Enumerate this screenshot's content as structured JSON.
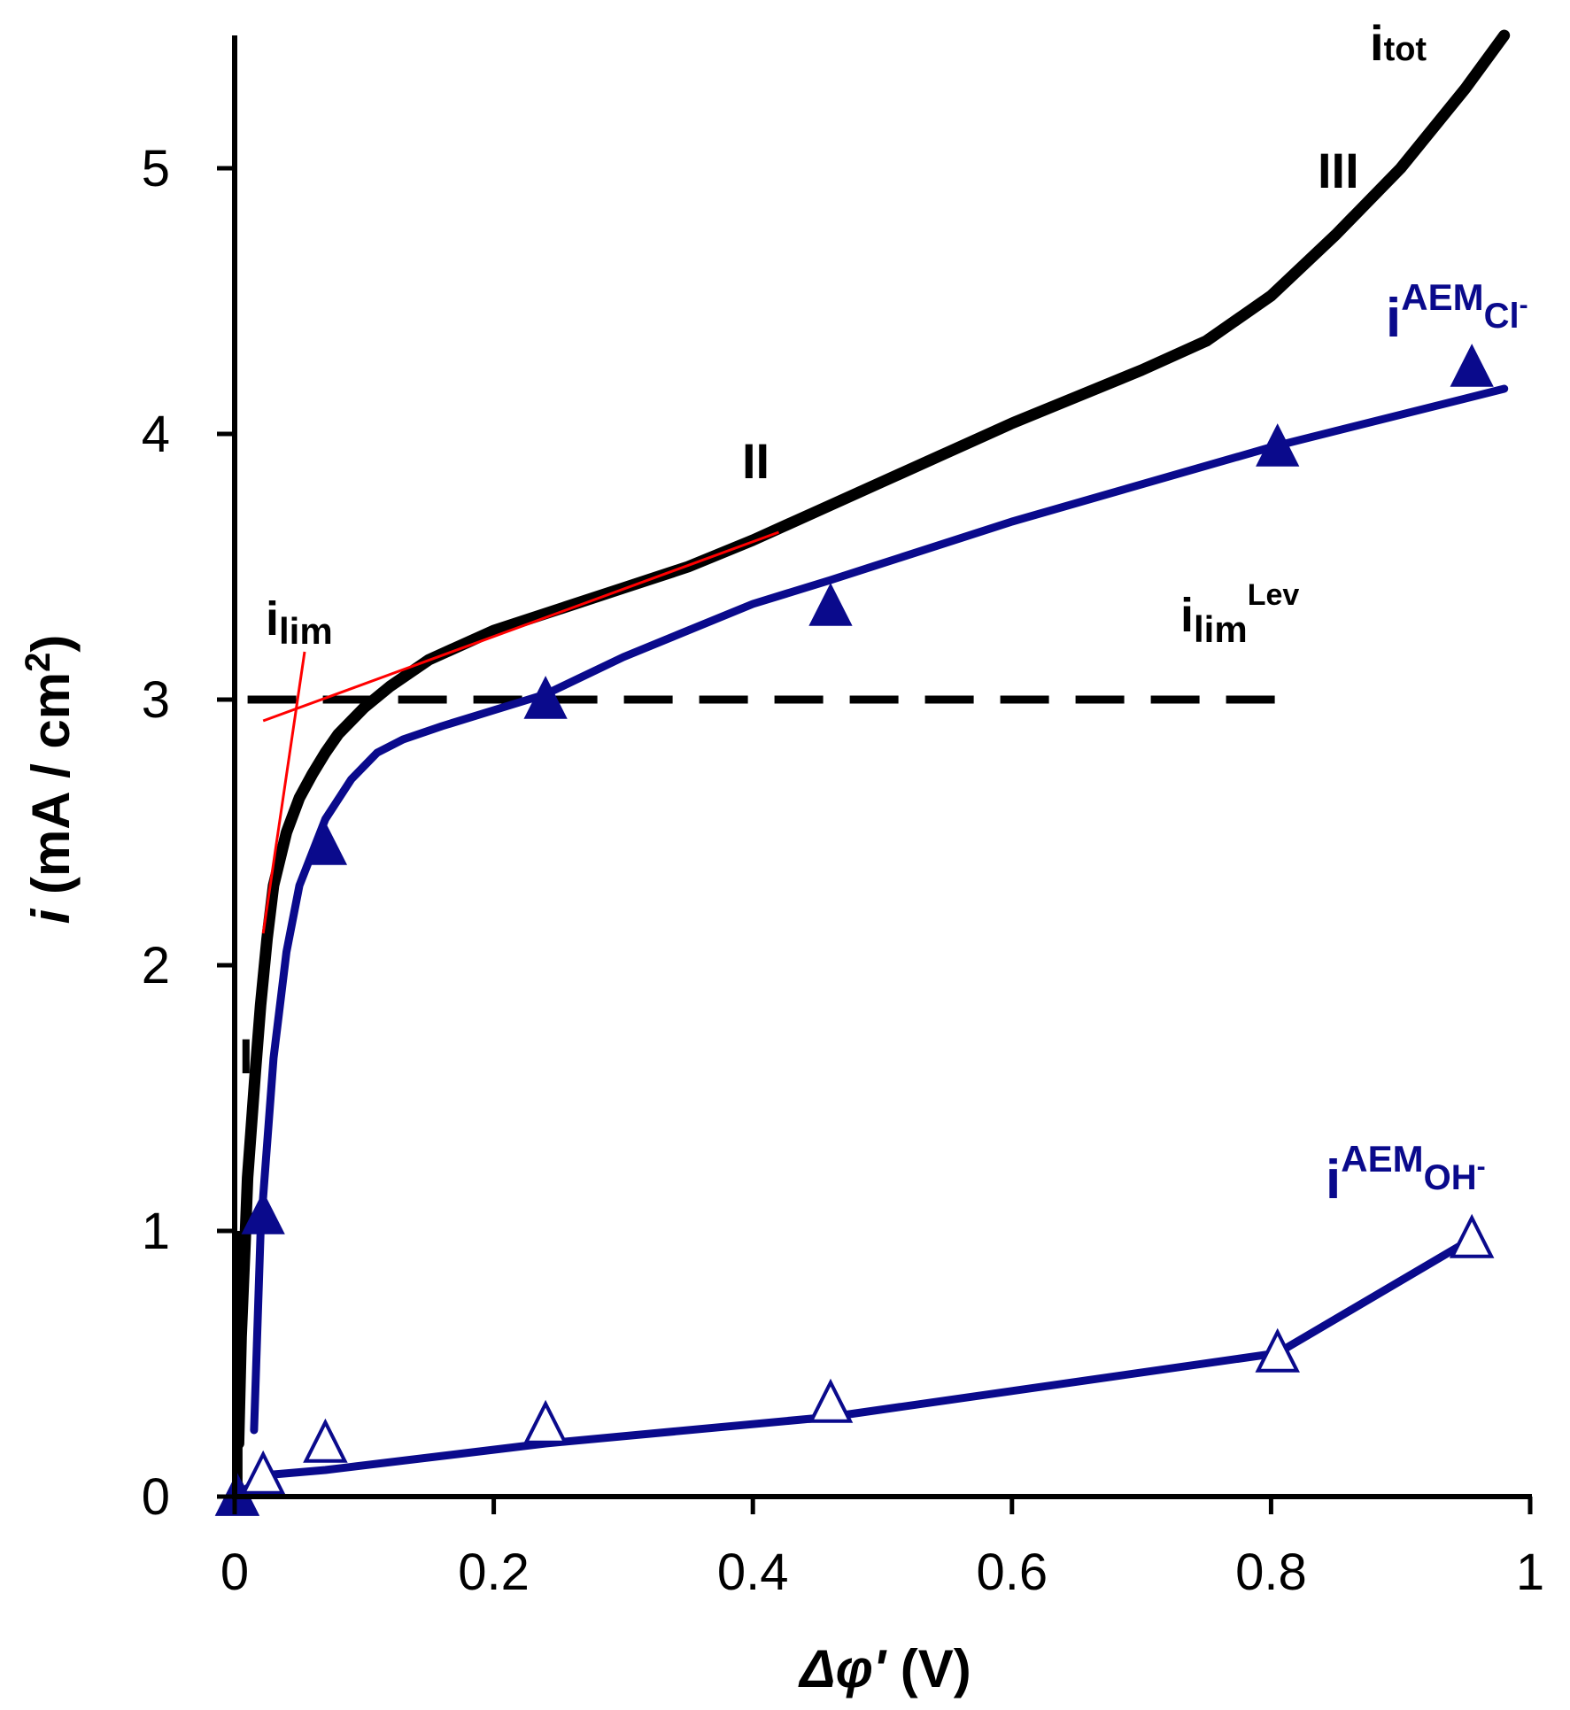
{
  "chart_data": {
    "type": "line",
    "title": "",
    "xlabel": {
      "symbol": "Δφʹ",
      "unit": " (V)"
    },
    "ylabel": {
      "symbol": "i",
      "unit": " (mA / cm",
      "exp": "2",
      "close": ")"
    },
    "xlim": [
      0,
      1
    ],
    "ylim": [
      0,
      5.5
    ],
    "x_ticks": [
      0,
      0.2,
      0.4,
      0.6,
      0.8,
      1
    ],
    "x_tick_labels": [
      "0",
      "0.2",
      "0.4",
      "0.6",
      "0.8",
      "1"
    ],
    "y_ticks": [
      0,
      1,
      2,
      3,
      4,
      5
    ],
    "y_tick_labels": [
      "0",
      "1",
      "2",
      "3",
      "4",
      "5"
    ],
    "grid": false,
    "colors": {
      "total": "#000000",
      "aem": "#0a0a8c",
      "tangent": "#ff0000"
    },
    "series": [
      {
        "name": "i_tot",
        "label": {
          "main": "i",
          "sub": "tot"
        },
        "style": "thick-black",
        "x": [
          0.003,
          0.005,
          0.008,
          0.01,
          0.013,
          0.016,
          0.02,
          0.025,
          0.03,
          0.04,
          0.05,
          0.06,
          0.07,
          0.08,
          0.1,
          0.12,
          0.15,
          0.2,
          0.25,
          0.3,
          0.35,
          0.4,
          0.45,
          0.5,
          0.55,
          0.6,
          0.65,
          0.7,
          0.75,
          0.8,
          0.85,
          0.9,
          0.95,
          0.98
        ],
        "y": [
          0.2,
          0.6,
          0.95,
          1.2,
          1.4,
          1.6,
          1.85,
          2.1,
          2.3,
          2.5,
          2.63,
          2.72,
          2.8,
          2.87,
          2.97,
          3.05,
          3.15,
          3.26,
          3.34,
          3.42,
          3.5,
          3.6,
          3.71,
          3.82,
          3.93,
          4.04,
          4.14,
          4.24,
          4.35,
          4.52,
          4.75,
          5.0,
          5.3,
          5.5
        ]
      },
      {
        "name": "i_AEM_Cl",
        "label": {
          "main": "i",
          "sup": "AEM",
          "subsub": "Cl",
          "ion": "-"
        },
        "style": "blue-line-filled-triangles",
        "line_x": [
          0.015,
          0.02,
          0.03,
          0.04,
          0.05,
          0.07,
          0.09,
          0.11,
          0.13,
          0.16,
          0.2,
          0.24,
          0.3,
          0.4,
          0.46,
          0.6,
          0.8,
          0.98
        ],
        "line_y": [
          0.25,
          1.0,
          1.65,
          2.05,
          2.3,
          2.55,
          2.7,
          2.8,
          2.85,
          2.9,
          2.96,
          3.02,
          3.16,
          3.36,
          3.45,
          3.67,
          3.95,
          4.17
        ],
        "markers_x": [
          0.002,
          0.022,
          0.07,
          0.24,
          0.46,
          0.805,
          0.955
        ],
        "markers_y": [
          0.0,
          1.06,
          2.45,
          3.0,
          3.35,
          3.95,
          4.25
        ]
      },
      {
        "name": "i_AEM_OH",
        "label": {
          "main": "i",
          "sup": "AEM",
          "subsub": "OH",
          "ion": "-"
        },
        "style": "blue-line-open-triangles",
        "line_x": [
          0.002,
          0.022,
          0.07,
          0.24,
          0.46,
          0.805,
          0.955
        ],
        "line_y": [
          0.0,
          0.08,
          0.1,
          0.2,
          0.3,
          0.54,
          0.97
        ],
        "markers_x": [
          0.002,
          0.022,
          0.07,
          0.24,
          0.46,
          0.805,
          0.955
        ],
        "markers_y": [
          0.0,
          0.08,
          0.2,
          0.27,
          0.35,
          0.54,
          0.97
        ]
      },
      {
        "name": "i_lim_Lev",
        "label": {
          "main": "i",
          "sub": "lim",
          "sup": "Lev"
        },
        "style": "dashed-black",
        "x": [
          0.01,
          0.805
        ],
        "y": [
          3.0,
          3.0
        ]
      }
    ],
    "tangent_lines": [
      {
        "x": [
          0.022,
          0.054
        ],
        "y": [
          2.12,
          3.18
        ]
      },
      {
        "x": [
          0.022,
          0.42
        ],
        "y": [
          2.92,
          3.63
        ]
      }
    ],
    "annotations": {
      "region_I": "I",
      "region_II": "II",
      "region_III": "III",
      "i_lim": {
        "main": "i",
        "sub": "lim"
      }
    }
  }
}
